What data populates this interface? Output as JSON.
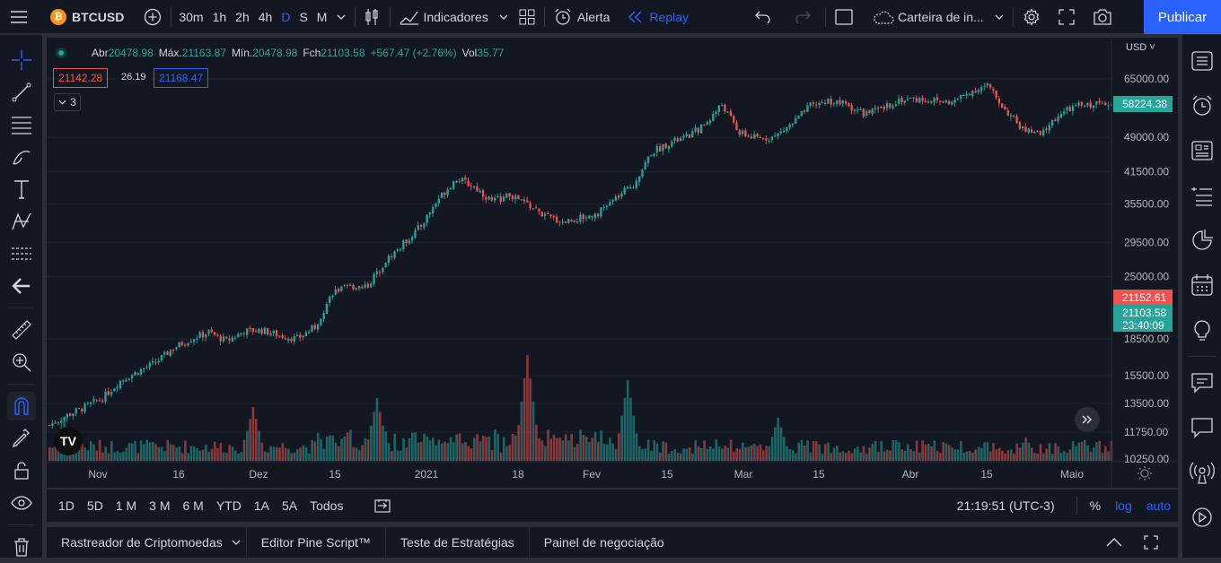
{
  "topbar": {
    "symbol": "BTCUSD",
    "coin_glyph": "₿",
    "timeframes": [
      "30m",
      "1h",
      "2h",
      "4h",
      "D",
      "S",
      "M"
    ],
    "active_timeframe": "D",
    "indicators": "Indicadores",
    "alert": "Alerta",
    "replay": "Replay",
    "watchlist": "Carteira de in...",
    "publish": "Publicar"
  },
  "legend": {
    "open_label": "Abr",
    "open": "20478.98",
    "high_label": "Máx.",
    "high": "21163.87",
    "low_label": "Mín.",
    "low": "20478.98",
    "close_label": "Fch",
    "close": "21103.58",
    "change": "+567.47 (+2.76%)",
    "vol_label": "Vol",
    "vol": "35.77"
  },
  "bid": "21142.28",
  "spread": "26.19",
  "ask": "21168.47",
  "indicator_count": "3",
  "price_axis": {
    "currency": "USD",
    "ticks": [
      "65000.00",
      "49000.00",
      "41500.00",
      "35500.00",
      "29500.00",
      "25000.00",
      "18500.00",
      "15500.00",
      "13500.00",
      "11750.00",
      "10250.00"
    ],
    "last_price_top": "58224.38",
    "red_label": "21152.61",
    "close_label": "21103.58",
    "countdown": "23:40:09"
  },
  "time_axis": [
    "Nov",
    "16",
    "Dez",
    "15",
    "2021",
    "18",
    "Fev",
    "15",
    "Mar",
    "15",
    "Abr",
    "15",
    "Maio"
  ],
  "ranges": [
    "1D",
    "5D",
    "1 M",
    "3 M",
    "6 M",
    "YTD",
    "1A",
    "5A",
    "Todos"
  ],
  "clock": "21:19:51 (UTC-3)",
  "scale": {
    "percent": "%",
    "log": "log",
    "auto": "auto"
  },
  "panels": [
    "Rastreador de Criptomoedas",
    "Editor Pine Script™",
    "Teste de Estratégias",
    "Painel de negociação"
  ],
  "logo_text": "TV",
  "colors": {
    "up": "#26a69a",
    "down": "#ef5350",
    "accent": "#2962ff",
    "bg": "#131722"
  },
  "chart_data": {
    "type": "candlestick",
    "scale": "log",
    "ylim": [
      10250,
      70000
    ],
    "xlabel": "",
    "ylabel": "",
    "close_trend": [
      [
        0,
        12200
      ],
      [
        6,
        12800
      ],
      [
        12,
        13300
      ],
      [
        18,
        13900
      ],
      [
        24,
        15100
      ],
      [
        30,
        15800
      ],
      [
        36,
        16500
      ],
      [
        42,
        17700
      ],
      [
        48,
        18500
      ],
      [
        54,
        19100
      ],
      [
        60,
        18300
      ],
      [
        66,
        19200
      ],
      [
        72,
        19300
      ],
      [
        78,
        18800
      ],
      [
        84,
        18500
      ],
      [
        90,
        19600
      ],
      [
        96,
        23200
      ],
      [
        102,
        23800
      ],
      [
        108,
        24000
      ],
      [
        114,
        27000
      ],
      [
        120,
        29300
      ],
      [
        126,
        32000
      ],
      [
        132,
        36500
      ],
      [
        138,
        40200
      ],
      [
        144,
        38600
      ],
      [
        150,
        36000
      ],
      [
        156,
        37000
      ],
      [
        162,
        35500
      ],
      [
        168,
        33500
      ],
      [
        174,
        32600
      ],
      [
        180,
        33200
      ],
      [
        186,
        34000
      ],
      [
        192,
        36500
      ],
      [
        198,
        39000
      ],
      [
        204,
        45500
      ],
      [
        210,
        47700
      ],
      [
        216,
        49000
      ],
      [
        222,
        52000
      ],
      [
        228,
        57500
      ],
      [
        234,
        50000
      ],
      [
        240,
        48700
      ],
      [
        246,
        49200
      ],
      [
        252,
        52500
      ],
      [
        258,
        57000
      ],
      [
        264,
        58500
      ],
      [
        270,
        57500
      ],
      [
        276,
        55000
      ],
      [
        282,
        56000
      ],
      [
        288,
        58800
      ],
      [
        294,
        59000
      ],
      [
        300,
        58500
      ],
      [
        306,
        58000
      ],
      [
        312,
        61000
      ],
      [
        318,
        63000
      ],
      [
        324,
        56000
      ],
      [
        330,
        51000
      ],
      [
        336,
        49500
      ],
      [
        342,
        54500
      ],
      [
        348,
        57000
      ],
      [
        354,
        57500
      ],
      [
        360,
        58300
      ]
    ],
    "volume_spikes": [
      [
        5,
        48
      ],
      [
        69,
        60
      ],
      [
        111,
        70
      ],
      [
        162,
        118
      ],
      [
        196,
        90
      ],
      [
        247,
        48
      ],
      [
        331,
        26
      ]
    ]
  }
}
